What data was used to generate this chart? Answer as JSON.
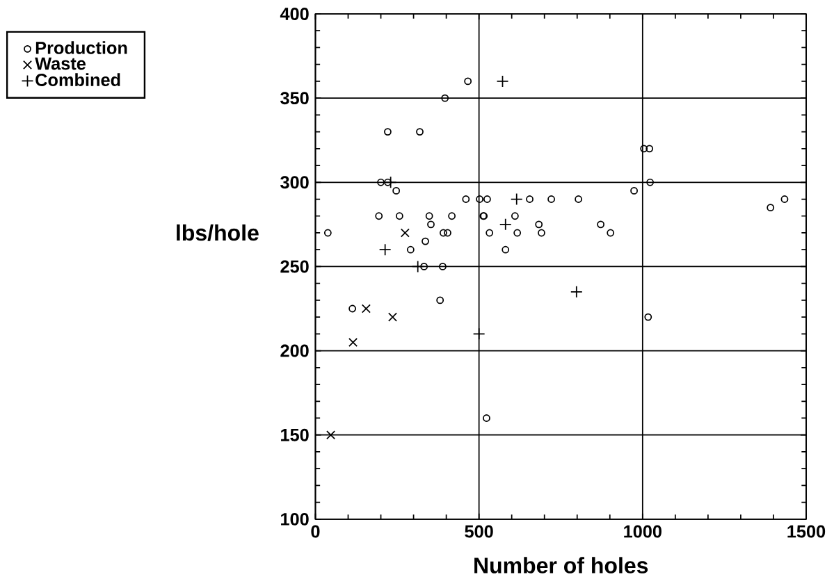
{
  "chart_data": {
    "type": "scatter",
    "xlabel": "Number of holes",
    "ylabel": "lbs/hole",
    "xlim": [
      0,
      1500
    ],
    "ylim": [
      100,
      400
    ],
    "xticks": [
      0,
      500,
      1000,
      1500
    ],
    "yticks": [
      100,
      150,
      200,
      250,
      300,
      350,
      400
    ],
    "grid": true,
    "legend": "top left",
    "series": [
      {
        "name": "Production",
        "color": "#000000",
        "marker": "circle",
        "x": [
          38,
          113,
          194,
          200,
          221,
          221,
          247,
          257,
          291,
          319,
          332,
          336,
          348,
          353,
          381,
          389,
          391,
          396,
          404,
          417,
          460,
          466,
          502,
          513,
          515,
          523,
          525,
          532,
          581,
          610,
          617,
          655,
          683,
          691,
          721,
          804,
          872,
          902,
          974,
          1004,
          1017,
          1021,
          1023,
          1391,
          1434
        ],
        "values": [
          270,
          225,
          280,
          300,
          300,
          330,
          295,
          280,
          260,
          330,
          250,
          265,
          280,
          275,
          230,
          250,
          270,
          350,
          270,
          280,
          290,
          360,
          290,
          280,
          280,
          160,
          290,
          270,
          260,
          280,
          270,
          290,
          275,
          270,
          290,
          290,
          275,
          270,
          295,
          320,
          220,
          320,
          300,
          285,
          290
        ]
      },
      {
        "name": "Waste",
        "color": "#000000",
        "marker": "cross",
        "x": [
          47,
          115,
          155,
          236,
          274
        ],
        "values": [
          150,
          205,
          225,
          220,
          270
        ]
      },
      {
        "name": "Combined",
        "color": "#000000",
        "marker": "plus",
        "x": [
          213,
          230,
          313,
          500,
          572,
          581,
          615,
          798
        ],
        "values": [
          260,
          300,
          250,
          210,
          360,
          275,
          290,
          235
        ]
      }
    ]
  }
}
